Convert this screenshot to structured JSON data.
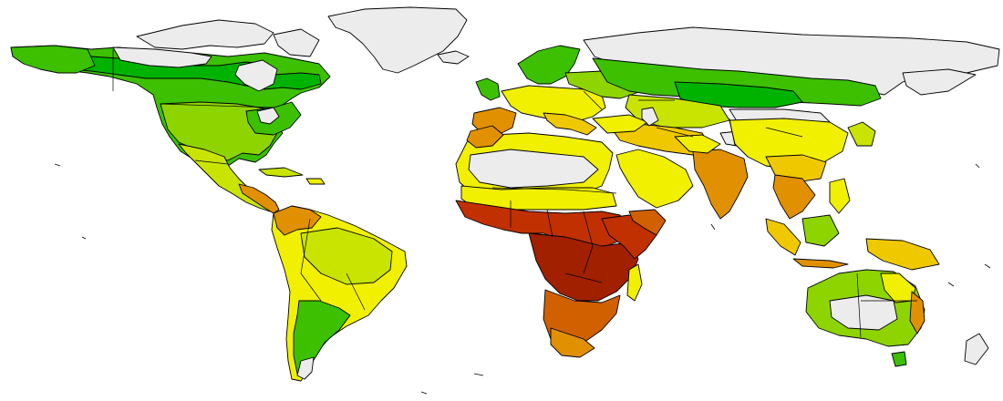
{
  "map": {
    "type": "choropleth",
    "projection": "equirectangular",
    "colors": {
      "background": "#ffffff",
      "no_data": "#ececec",
      "border": "#000000",
      "class_1_dark_green": "#00b300",
      "class_2_green": "#3cc000",
      "class_3_light_green": "#8ed400",
      "class_4_yellow_green": "#c8e400",
      "class_5_yellow": "#f0f000",
      "class_6_light_orange": "#f0c800",
      "class_7_orange": "#e09000",
      "class_8_dark_orange": "#d06000",
      "class_9_red": "#c03000",
      "class_10_dark_red": "#a02000"
    },
    "legend": null,
    "title": null
  }
}
